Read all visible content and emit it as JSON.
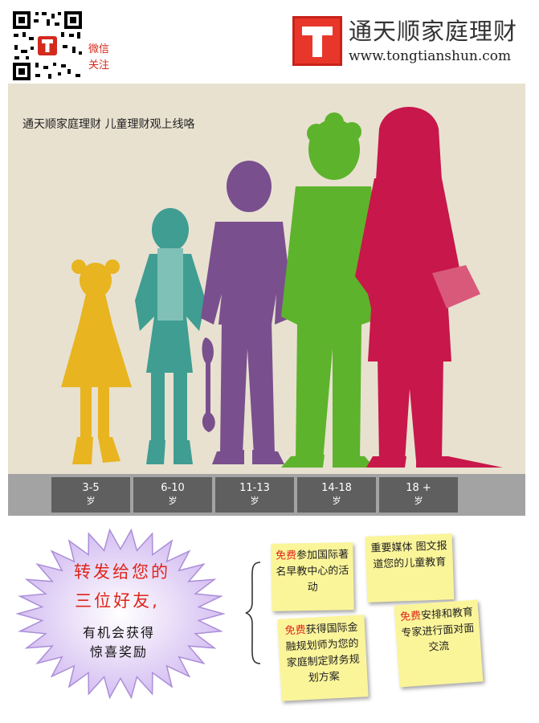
{
  "header": {
    "wechat_line1": "微信",
    "wechat_line2": "关注",
    "brand_name": "通天顺家庭理财",
    "brand_url": "www.tongtianshun.com"
  },
  "poster": {
    "headline": "通天顺家庭理财 儿童理财观上线咯"
  },
  "age_groups": [
    {
      "range": "3-5",
      "unit": "岁",
      "color": "#e8b420"
    },
    {
      "range": "6-10",
      "unit": "岁",
      "color": "#3f9d92"
    },
    {
      "range": "11-13",
      "unit": "岁",
      "color": "#7a4f8e"
    },
    {
      "range": "14-18",
      "unit": "岁",
      "color": "#5db32c"
    },
    {
      "range": "18 +",
      "unit": "岁",
      "color": "#c8174a"
    }
  ],
  "promo": {
    "line1": "转发给您的",
    "line2": "三位好友,",
    "line3": "有机会获得",
    "line4": "惊喜奖励"
  },
  "notes": [
    {
      "free": "免费",
      "text": "参加国际著名早教中心的活动"
    },
    {
      "free": "",
      "text": "重要媒体 图文报道您的儿童教育"
    },
    {
      "free": "免费",
      "text": "获得国际金融规划师为您的家庭制定财务规划方案"
    },
    {
      "free": "免费",
      "text": "安排和教育专家进行面对面交流"
    }
  ]
}
